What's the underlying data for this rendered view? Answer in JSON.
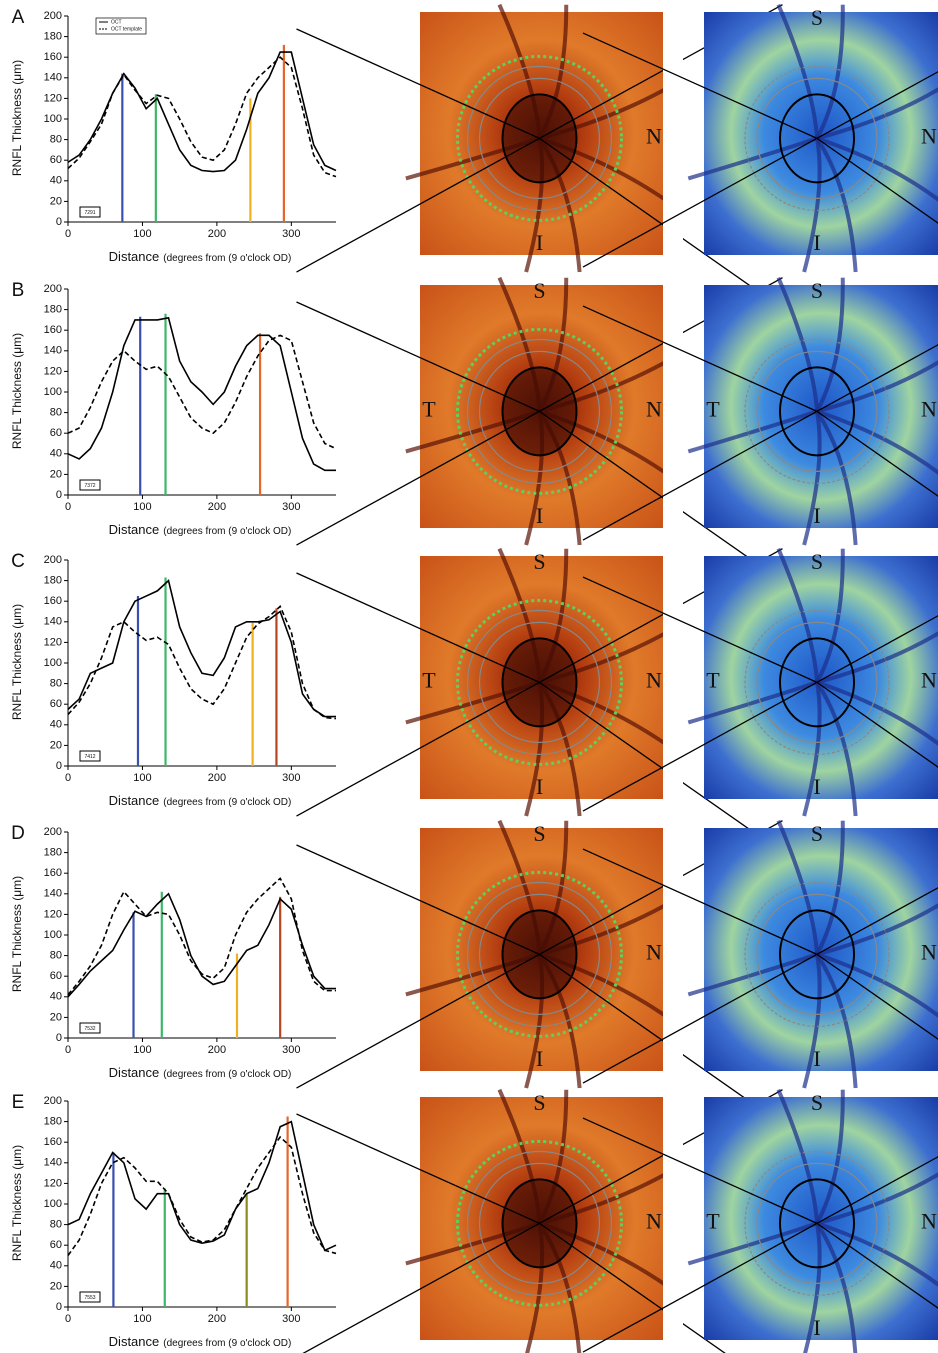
{
  "chart_data": [
    {
      "type": "line",
      "panel_label": "A",
      "ylabel": "RNFL Thickness (μm)",
      "xlabel": "Distance",
      "xlabel_note": "(degrees from (9 o'clock OD)",
      "id_box": "7291",
      "legend": true,
      "xlim": [
        0,
        360
      ],
      "xticks": [
        0,
        100,
        200,
        300
      ],
      "ylim": [
        0,
        200
      ],
      "yticks": [
        0,
        20,
        40,
        60,
        80,
        100,
        120,
        140,
        160,
        180,
        200
      ],
      "x": [
        0,
        15,
        30,
        45,
        60,
        75,
        90,
        105,
        120,
        135,
        150,
        165,
        180,
        195,
        210,
        225,
        240,
        255,
        270,
        285,
        300,
        315,
        330,
        345,
        360
      ],
      "series": [
        {
          "name": "OCT",
          "color": "#000000",
          "dash": false,
          "values": [
            58,
            65,
            80,
            100,
            125,
            144,
            130,
            110,
            120,
            95,
            70,
            55,
            50,
            49,
            50,
            60,
            90,
            125,
            140,
            165,
            165,
            120,
            75,
            55,
            50
          ]
        },
        {
          "name": "OCT template",
          "color": "#000000",
          "dash": true,
          "values": [
            52,
            62,
            78,
            95,
            125,
            143,
            128,
            115,
            123,
            120,
            100,
            78,
            63,
            60,
            70,
            95,
            125,
            140,
            150,
            160,
            150,
            110,
            65,
            48,
            44
          ]
        }
      ],
      "verticals": {
        "x": [
          73,
          118,
          245,
          290
        ],
        "values": [
          144,
          124,
          120,
          172
        ],
        "colors": [
          "#3a4fb0",
          "#3cb76a",
          "#f0b020",
          "#e8652a"
        ]
      }
    },
    {
      "type": "line",
      "panel_label": "B",
      "ylabel": "RNFL Thickness (μm)",
      "xlabel": "Distance",
      "xlabel_note": "(degrees from (9 o'clock OD)",
      "id_box": "7372",
      "legend": false,
      "xlim": [
        0,
        360
      ],
      "xticks": [
        0,
        100,
        200,
        300
      ],
      "ylim": [
        0,
        200
      ],
      "yticks": [
        0,
        20,
        40,
        60,
        80,
        100,
        120,
        140,
        160,
        180,
        200
      ],
      "x": [
        0,
        15,
        30,
        45,
        60,
        75,
        90,
        105,
        120,
        135,
        150,
        165,
        180,
        195,
        210,
        225,
        240,
        255,
        270,
        285,
        300,
        315,
        330,
        345,
        360
      ],
      "series": [
        {
          "color": "#000000",
          "dash": false,
          "values": [
            40,
            35,
            45,
            65,
            100,
            145,
            170,
            170,
            170,
            172,
            130,
            110,
            100,
            88,
            100,
            125,
            145,
            155,
            155,
            145,
            100,
            55,
            30,
            24,
            24
          ]
        },
        {
          "color": "#000000",
          "dash": true,
          "values": [
            60,
            65,
            85,
            110,
            130,
            140,
            130,
            122,
            125,
            115,
            95,
            75,
            65,
            60,
            70,
            90,
            115,
            135,
            150,
            155,
            150,
            110,
            70,
            50,
            45
          ]
        }
      ],
      "verticals": {
        "x": [
          97,
          131,
          258
        ],
        "values": [
          173,
          176,
          157
        ],
        "colors": [
          "#3a4fb0",
          "#3cb76a",
          "#e8652a"
        ]
      }
    },
    {
      "type": "line",
      "panel_label": "C",
      "ylabel": "RNFL Thickness (μm)",
      "xlabel": "Distance",
      "xlabel_note": "(degrees from (9 o'clock OD)",
      "id_box": "7412",
      "legend": false,
      "xlim": [
        0,
        360
      ],
      "xticks": [
        0,
        100,
        200,
        300
      ],
      "ylim": [
        0,
        200
      ],
      "yticks": [
        0,
        20,
        40,
        60,
        80,
        100,
        120,
        140,
        160,
        180,
        200
      ],
      "x": [
        0,
        15,
        30,
        45,
        60,
        75,
        90,
        105,
        120,
        135,
        150,
        165,
        180,
        195,
        210,
        225,
        240,
        255,
        270,
        285,
        300,
        315,
        330,
        345,
        360
      ],
      "series": [
        {
          "color": "#000000",
          "dash": false,
          "values": [
            55,
            65,
            90,
            95,
            100,
            140,
            160,
            165,
            170,
            180,
            135,
            110,
            90,
            88,
            105,
            135,
            140,
            140,
            142,
            150,
            120,
            70,
            55,
            48,
            48
          ]
        },
        {
          "color": "#000000",
          "dash": true,
          "values": [
            50,
            62,
            80,
            105,
            135,
            140,
            130,
            122,
            125,
            118,
            95,
            75,
            65,
            60,
            75,
            100,
            125,
            138,
            145,
            155,
            130,
            80,
            55,
            47,
            46
          ]
        }
      ],
      "verticals": {
        "x": [
          94,
          131,
          248,
          280
        ],
        "values": [
          165,
          183,
          139,
          153
        ],
        "colors": [
          "#3a4fb0",
          "#3cb76a",
          "#f0b020",
          "#b8451e"
        ]
      }
    },
    {
      "type": "line",
      "panel_label": "D",
      "ylabel": "RNFL Thickness (μm)",
      "xlabel": "Distance",
      "xlabel_note": "(degrees from (9 o'clock OD)",
      "id_box": "7532",
      "legend": false,
      "xlim": [
        0,
        360
      ],
      "xticks": [
        0,
        100,
        200,
        300
      ],
      "ylim": [
        0,
        200
      ],
      "yticks": [
        0,
        20,
        40,
        60,
        80,
        100,
        120,
        140,
        160,
        180,
        200
      ],
      "x": [
        0,
        15,
        30,
        45,
        60,
        75,
        90,
        105,
        120,
        135,
        150,
        165,
        180,
        195,
        210,
        225,
        240,
        255,
        270,
        285,
        300,
        315,
        330,
        345,
        360
      ],
      "series": [
        {
          "color": "#000000",
          "dash": false,
          "values": [
            40,
            52,
            65,
            75,
            85,
            105,
            123,
            118,
            130,
            140,
            115,
            80,
            60,
            52,
            55,
            70,
            85,
            90,
            110,
            135,
            125,
            90,
            60,
            48,
            48
          ]
        },
        {
          "color": "#000000",
          "dash": true,
          "values": [
            42,
            55,
            70,
            90,
            120,
            142,
            130,
            118,
            122,
            120,
            100,
            75,
            62,
            58,
            68,
            100,
            122,
            135,
            145,
            155,
            135,
            85,
            55,
            46,
            46
          ]
        }
      ],
      "verticals": {
        "x": [
          88,
          126,
          227,
          285
        ],
        "values": [
          122,
          142,
          82,
          137
        ],
        "colors": [
          "#3a4fb0",
          "#3cb76a",
          "#f0b020",
          "#b8451e"
        ]
      }
    },
    {
      "type": "line",
      "panel_label": "E",
      "ylabel": "RNFL Thickness (μm)",
      "xlabel": "Distance",
      "xlabel_note": "(degrees from (9 o'clock OD)",
      "id_box": "7553",
      "legend": false,
      "xlim": [
        0,
        360
      ],
      "xticks": [
        0,
        100,
        200,
        300
      ],
      "ylim": [
        0,
        200
      ],
      "yticks": [
        0,
        20,
        40,
        60,
        80,
        100,
        120,
        140,
        160,
        180,
        200
      ],
      "x": [
        0,
        15,
        30,
        45,
        60,
        75,
        90,
        105,
        120,
        135,
        150,
        165,
        180,
        195,
        210,
        225,
        240,
        255,
        270,
        285,
        300,
        315,
        330,
        345,
        360
      ],
      "series": [
        {
          "color": "#000000",
          "dash": false,
          "values": [
            80,
            85,
            110,
            130,
            150,
            140,
            105,
            95,
            110,
            110,
            80,
            65,
            62,
            64,
            70,
            95,
            110,
            115,
            140,
            175,
            180,
            130,
            80,
            55,
            60
          ]
        },
        {
          "color": "#000000",
          "dash": true,
          "values": [
            50,
            65,
            90,
            120,
            140,
            145,
            135,
            122,
            122,
            110,
            85,
            68,
            63,
            65,
            75,
            95,
            115,
            135,
            150,
            165,
            155,
            110,
            72,
            55,
            52
          ]
        }
      ],
      "verticals": {
        "x": [
          61,
          130,
          240,
          295
        ],
        "values": [
          150,
          115,
          110,
          185
        ],
        "colors": [
          "#3a4fb0",
          "#3cb76a",
          "#8a8a20",
          "#e8652a"
        ]
      }
    }
  ],
  "images": [
    [
      {
        "right": "N",
        "bottom": "I"
      },
      {
        "top": "S",
        "right": "N",
        "bottom": "I"
      }
    ],
    [
      {
        "top": "S",
        "left": "T",
        "right": "N",
        "bottom": "I"
      },
      {
        "top": "S",
        "left": "T",
        "right": "N",
        "bottom": "I"
      }
    ],
    [
      {
        "top": "S",
        "left": "T",
        "right": "N",
        "bottom": "I"
      },
      {
        "top": "S",
        "left": "T",
        "right": "N",
        "bottom": "I"
      }
    ],
    [
      {
        "top": "S",
        "right": "N",
        "bottom": "I"
      },
      {
        "top": "S",
        "right": "N",
        "bottom": "I"
      }
    ],
    [
      {
        "top": "S",
        "right": "N"
      },
      {
        "top": "S",
        "left": "T",
        "right": "N",
        "bottom": "I"
      }
    ]
  ]
}
